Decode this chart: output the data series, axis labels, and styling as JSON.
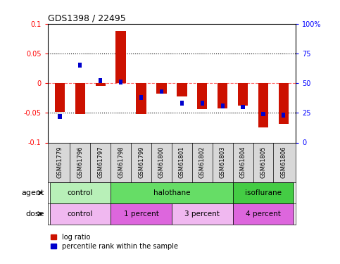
{
  "title": "GDS1398 / 22495",
  "samples": [
    "GSM61779",
    "GSM61796",
    "GSM61797",
    "GSM61798",
    "GSM61799",
    "GSM61800",
    "GSM61801",
    "GSM61802",
    "GSM61803",
    "GSM61804",
    "GSM61805",
    "GSM61806"
  ],
  "log_ratio": [
    -0.048,
    -0.052,
    -0.005,
    0.088,
    -0.052,
    -0.018,
    -0.022,
    -0.044,
    -0.042,
    -0.038,
    -0.075,
    -0.068
  ],
  "percentile": [
    22,
    65,
    52,
    51,
    38,
    43,
    33,
    33,
    31,
    30,
    24,
    23
  ],
  "ylim": [
    -0.1,
    0.1
  ],
  "yticks_left": [
    -0.1,
    -0.05,
    0,
    0.05,
    0.1
  ],
  "yticks_right": [
    0,
    25,
    50,
    75,
    100
  ],
  "bar_color_red": "#cc1100",
  "bar_color_blue": "#0000cc",
  "hline_color": "#ff6666",
  "dotted_color": "#000000",
  "agent_groups": [
    {
      "label": "control",
      "start": 0,
      "end": 3,
      "color": "#b8f0b8"
    },
    {
      "label": "halothane",
      "start": 3,
      "end": 9,
      "color": "#66dd66"
    },
    {
      "label": "isoflurane",
      "start": 9,
      "end": 12,
      "color": "#44cc44"
    }
  ],
  "dose_groups": [
    {
      "label": "control",
      "start": 0,
      "end": 3,
      "color": "#f0b8f0"
    },
    {
      "label": "1 percent",
      "start": 3,
      "end": 6,
      "color": "#dd66dd"
    },
    {
      "label": "3 percent",
      "start": 6,
      "end": 9,
      "color": "#f0b8f0"
    },
    {
      "label": "4 percent",
      "start": 9,
      "end": 12,
      "color": "#dd66dd"
    }
  ],
  "legend_red": "log ratio",
  "legend_blue": "percentile rank within the sample",
  "sample_bg": "#d8d8d8",
  "agent_label": "agent",
  "dose_label": "dose"
}
